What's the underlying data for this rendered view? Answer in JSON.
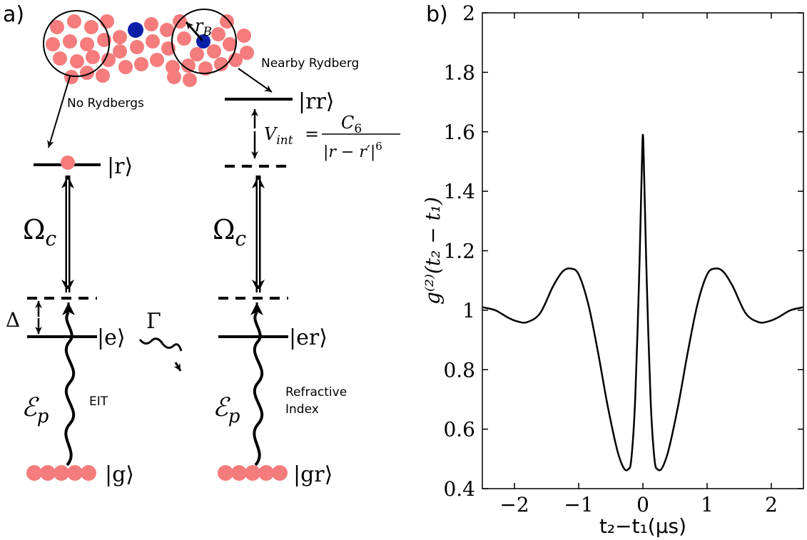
{
  "panel_a": {
    "label": "a)",
    "annotations": {
      "no_rydbergs": "No Rydbergs",
      "nearby_rydberg": "Nearby Rydberg",
      "blockade_radius": "r",
      "blockade_radius_sub": "B",
      "eit": "EIT",
      "refractive_line1": "Refractive",
      "refractive_line2": "Index"
    },
    "left_ladder": {
      "state_r": "|r⟩",
      "state_e": "|e⟩",
      "state_g": "|g⟩",
      "coupling": "Ω",
      "coupling_sub": "c",
      "detuning": "Δ",
      "decay": "Γ",
      "probe": "ℰ",
      "probe_sub": "p"
    },
    "right_ladder": {
      "state_rr": "|rr⟩",
      "state_er": "|er⟩",
      "state_gr": "|gr⟩",
      "coupling": "Ω",
      "coupling_sub": "c",
      "probe": "ℰ",
      "probe_sub": "p",
      "interaction_lhs": "V",
      "interaction_lhs_sub": "int",
      "interaction_eq": "=",
      "interaction_num": "C",
      "interaction_num_sub": "6",
      "interaction_den": "|r − r′|",
      "interaction_den_sup": "6"
    },
    "colors": {
      "ground_atom": "#f47c7c",
      "rydberg_atom": "#0b1fa8",
      "line": "#000000"
    }
  },
  "panel_b": {
    "label": "b)"
  },
  "chart_data": {
    "type": "line",
    "title": "",
    "xlabel": "t₂−t₁(μs)",
    "ylabel": "g⁽²⁾(t₂ − t₁)",
    "xlim": [
      -2.5,
      2.5
    ],
    "ylim": [
      0.4,
      2.0
    ],
    "xticks": [
      -2,
      -1,
      0,
      1,
      2
    ],
    "xtick_labels": [
      "−2",
      "−1",
      "0",
      "1",
      "2"
    ],
    "yticks": [
      0.4,
      0.6,
      0.8,
      1.0,
      1.2,
      1.4,
      1.6,
      1.8,
      2.0
    ],
    "ytick_labels": [
      "0.4",
      "0.6",
      "0.8",
      "1",
      "1.2",
      "1.4",
      "1.6",
      "1.8",
      "2"
    ],
    "grid": false,
    "series": [
      {
        "color": "#000000",
        "x": [
          -2.5,
          -2.3,
          -2.1,
          -1.95,
          -1.8,
          -1.6,
          -1.4,
          -1.25,
          -1.12,
          -1.0,
          -0.85,
          -0.7,
          -0.55,
          -0.4,
          -0.3,
          -0.23,
          -0.18,
          -0.12,
          -0.06,
          -0.02,
          0.0,
          0.02,
          0.06,
          0.12,
          0.18,
          0.23,
          0.3,
          0.4,
          0.55,
          0.7,
          0.85,
          1.0,
          1.12,
          1.25,
          1.4,
          1.6,
          1.8,
          1.95,
          2.1,
          2.3,
          2.5
        ],
        "y": [
          1.01,
          1.0,
          0.975,
          0.962,
          0.96,
          0.99,
          1.08,
          1.13,
          1.14,
          1.12,
          1.02,
          0.86,
          0.68,
          0.53,
          0.47,
          0.465,
          0.5,
          0.7,
          1.1,
          1.45,
          1.59,
          1.45,
          1.1,
          0.7,
          0.5,
          0.465,
          0.47,
          0.53,
          0.68,
          0.86,
          1.02,
          1.12,
          1.14,
          1.13,
          1.08,
          0.99,
          0.96,
          0.962,
          0.975,
          1.0,
          1.01
        ]
      }
    ]
  }
}
